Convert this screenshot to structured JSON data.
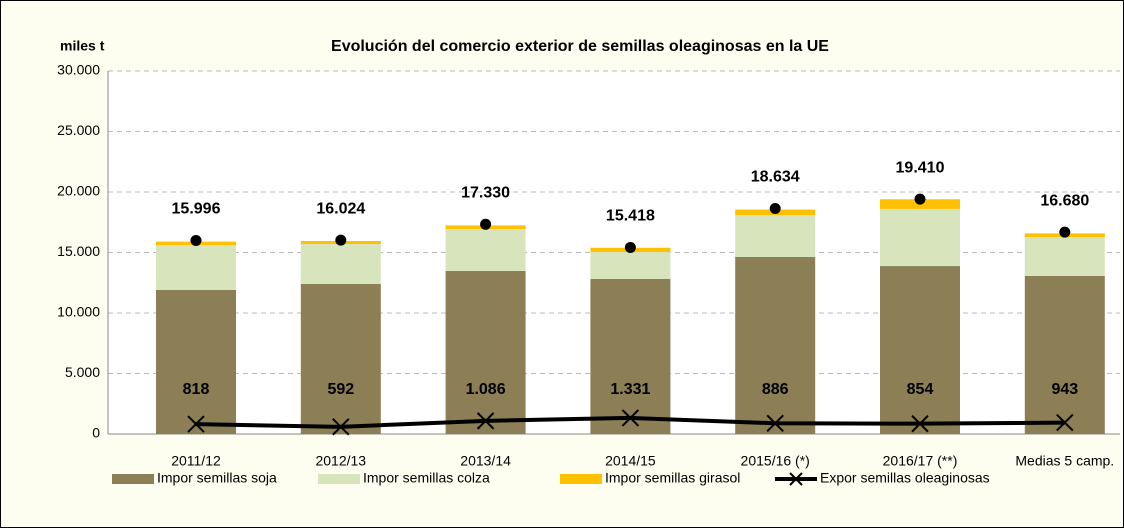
{
  "chart_data": {
    "type": "bar",
    "title": "Evolución del comercio exterior de semillas oleaginosas en la UE",
    "y_label": "miles t",
    "stacked": true,
    "grid": true,
    "categories": [
      "2011/12",
      "2012/13",
      "2013/14",
      "2014/15",
      "2015/16 (*)",
      "2016/17 (**)",
      "Medias 5 camp."
    ],
    "ylim": [
      0,
      30000
    ],
    "yticks": [
      0,
      {
        "value": 5000,
        "label": "5.000"
      },
      {
        "value": 10000,
        "label": "10.000"
      },
      {
        "value": 15000,
        "label": "15.000"
      },
      {
        "value": 20000,
        "label": "20.000"
      },
      {
        "value": 25000,
        "label": "25.000"
      },
      {
        "value": 30000,
        "label": "30.000"
      }
    ],
    "series": [
      {
        "name": "Impor semillas soja",
        "type": "bar",
        "color": "#8c7f55",
        "values": [
          11900,
          12400,
          13470,
          12810,
          14630,
          13880,
          13060
        ]
      },
      {
        "name": "Impor semillas colza",
        "type": "bar",
        "color": "#d8e4bc",
        "values": [
          3700,
          3300,
          3470,
          2230,
          3470,
          4720,
          3220
        ]
      },
      {
        "name": "Impor semillas girasol",
        "type": "bar",
        "color": "#ffc000",
        "values": [
          300,
          250,
          300,
          350,
          450,
          800,
          300
        ]
      },
      {
        "name": "Expor  semillas oleaginosas",
        "type": "line",
        "color": "#000000",
        "values": [
          818,
          592,
          1086,
          1331,
          886,
          854,
          943
        ],
        "value_labels": [
          "818",
          "592",
          "1.086",
          "1.331",
          "886",
          "854",
          "943"
        ]
      }
    ],
    "totals": {
      "color": "#6e6ea8",
      "values": [
        15996,
        16024,
        17330,
        15418,
        18634,
        19410,
        16680
      ],
      "value_labels": [
        "15.996",
        "16.024",
        "17.330",
        "15.418",
        "18.634",
        "19.410",
        "16.680"
      ]
    }
  }
}
